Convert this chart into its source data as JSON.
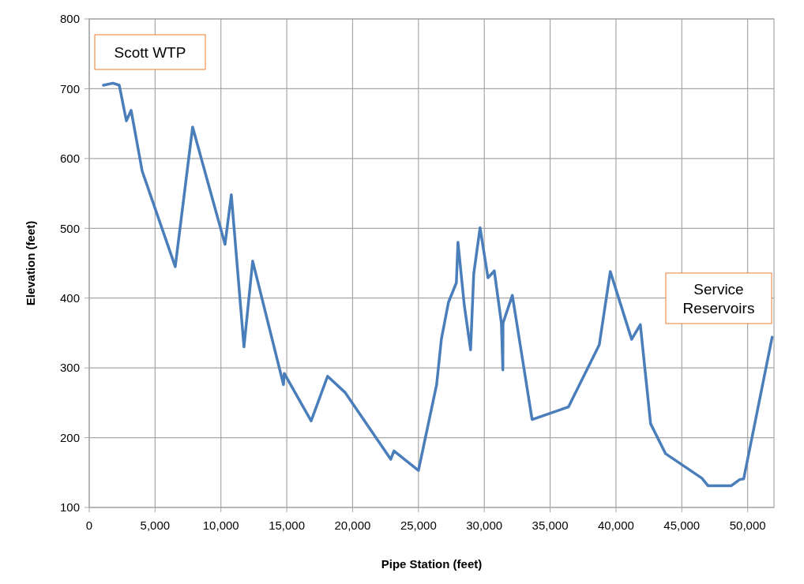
{
  "chart_data": {
    "type": "line",
    "xlabel": "Pipe Station (feet)",
    "ylabel": "Elevation (feet)",
    "annotations": [
      "Scott WTP",
      "Service Reservoirs"
    ],
    "x": [
      1080,
      1800,
      2280,
      2820,
      3180,
      4020,
      6530,
      7850,
      10310,
      10790,
      11750,
      12410,
      14750,
      14810,
      16850,
      18100,
      19420,
      22900,
      23140,
      25000,
      26380,
      26740,
      27280,
      27880,
      28000,
      28480,
      28960,
      29200,
      29680,
      30280,
      30760,
      31300,
      31410,
      31420,
      32130,
      33630,
      36390,
      38730,
      39570,
      41190,
      41850,
      42630,
      43770,
      46520,
      47000,
      48740,
      49400,
      49700,
      51860
    ],
    "series": [
      {
        "color": "#4a7ebb",
        "values": [
          705,
          708,
          705,
          654,
          669,
          582,
          445,
          645,
          477,
          548,
          330,
          453,
          276,
          292,
          224,
          288,
          265,
          169,
          181,
          153,
          276,
          341,
          394,
          422,
          480,
          390,
          326,
          435,
          501,
          429,
          439,
          364,
          297,
          364,
          404,
          226,
          244,
          333,
          438,
          341,
          362,
          220,
          177,
          142,
          131,
          131,
          140,
          141,
          344
        ]
      }
    ],
    "xlim": [
      0,
      52000
    ],
    "ylim": [
      100,
      800
    ],
    "xticks": [
      0,
      {
        "value": 5000,
        "label": "5,000"
      },
      {
        "value": 10000,
        "label": "10,000"
      },
      {
        "value": 15000,
        "label": "15,000"
      },
      {
        "value": 20000,
        "label": "20,000"
      },
      {
        "value": 25000,
        "label": "25,000"
      },
      {
        "value": 30000,
        "label": "30,000"
      },
      {
        "value": 35000,
        "label": "35,000"
      },
      {
        "value": 40000,
        "label": "40,000"
      },
      {
        "value": 45000,
        "label": "45,000"
      },
      {
        "value": 50000,
        "label": "50,000"
      }
    ],
    "yticks": [
      100,
      200,
      300,
      400,
      500,
      600,
      700,
      800
    ],
    "grid": true,
    "marker": "none",
    "line_style": "solid"
  }
}
